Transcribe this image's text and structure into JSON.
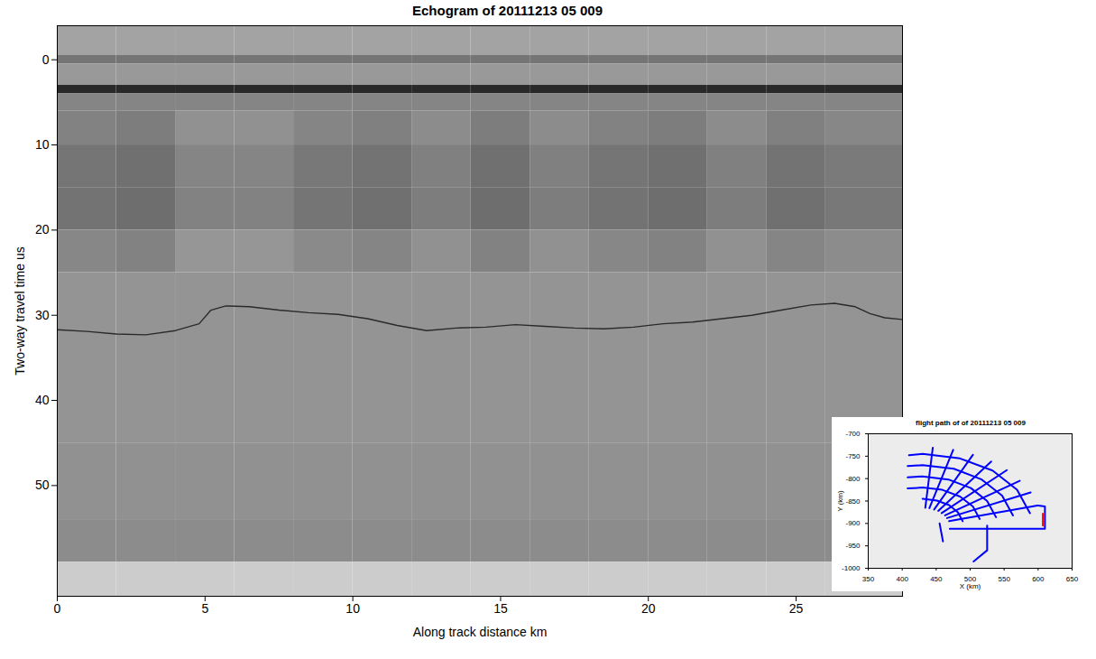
{
  "chart_data": [
    {
      "type": "heatmap",
      "title": "Echogram of 20111213 05 009",
      "x_label": "Along track distance km",
      "y_label": "Two-way travel time us",
      "xlim": [
        0,
        28.6
      ],
      "ylim": [
        63,
        -4
      ],
      "xticks": [
        0,
        5,
        10,
        15,
        20,
        25
      ],
      "yticks": [
        0,
        10,
        20,
        30,
        40,
        50
      ],
      "grid": false,
      "clim": [
        0,
        1
      ],
      "x_edges": [
        0,
        2,
        4,
        6,
        8,
        10,
        12,
        14,
        16,
        18,
        20,
        22,
        24,
        26,
        28.6
      ],
      "y_edges": [
        -4,
        -0.5,
        0.5,
        3,
        4,
        6,
        10,
        15,
        20,
        25,
        45,
        54,
        59,
        63
      ],
      "cells": [
        [
          0.64,
          0.64,
          0.64,
          0.64,
          0.64,
          0.64,
          0.64,
          0.64,
          0.64,
          0.64,
          0.64,
          0.64,
          0.64,
          0.64
        ],
        [
          0.46,
          0.46,
          0.46,
          0.46,
          0.46,
          0.46,
          0.46,
          0.46,
          0.46,
          0.46,
          0.46,
          0.46,
          0.46,
          0.46
        ],
        [
          0.6,
          0.6,
          0.6,
          0.6,
          0.6,
          0.6,
          0.6,
          0.6,
          0.6,
          0.6,
          0.6,
          0.6,
          0.6,
          0.6
        ],
        [
          0.16,
          0.16,
          0.16,
          0.16,
          0.16,
          0.16,
          0.16,
          0.16,
          0.16,
          0.16,
          0.16,
          0.16,
          0.16,
          0.16
        ],
        [
          0.52,
          0.52,
          0.52,
          0.52,
          0.52,
          0.52,
          0.52,
          0.52,
          0.52,
          0.52,
          0.52,
          0.52,
          0.52,
          0.52
        ],
        [
          0.51,
          0.49,
          0.57,
          0.57,
          0.52,
          0.5,
          0.55,
          0.49,
          0.55,
          0.51,
          0.49,
          0.55,
          0.5,
          0.53
        ],
        [
          0.46,
          0.44,
          0.52,
          0.52,
          0.47,
          0.45,
          0.5,
          0.44,
          0.5,
          0.46,
          0.44,
          0.5,
          0.45,
          0.48
        ],
        [
          0.45,
          0.43,
          0.51,
          0.51,
          0.46,
          0.44,
          0.49,
          0.43,
          0.49,
          0.45,
          0.43,
          0.49,
          0.44,
          0.47
        ],
        [
          0.53,
          0.51,
          0.59,
          0.59,
          0.54,
          0.52,
          0.57,
          0.51,
          0.57,
          0.53,
          0.51,
          0.57,
          0.52,
          0.55
        ],
        [
          0.58,
          0.58,
          0.58,
          0.58,
          0.58,
          0.58,
          0.58,
          0.58,
          0.58,
          0.58,
          0.58,
          0.58,
          0.58,
          0.58
        ],
        [
          0.57,
          0.57,
          0.57,
          0.57,
          0.57,
          0.57,
          0.57,
          0.57,
          0.57,
          0.57,
          0.57,
          0.57,
          0.57,
          0.57
        ],
        [
          0.55,
          0.55,
          0.55,
          0.55,
          0.55,
          0.55,
          0.55,
          0.55,
          0.55,
          0.55,
          0.55,
          0.55,
          0.55,
          0.55
        ],
        [
          0.8,
          0.8,
          0.8,
          0.8,
          0.8,
          0.8,
          0.8,
          0.8,
          0.8,
          0.8,
          0.8,
          0.8,
          0.8,
          0.8
        ]
      ],
      "line": {
        "color": "#2a2a2a",
        "x": [
          0,
          1,
          2,
          3,
          4,
          4.8,
          5.2,
          5.7,
          6.5,
          7.5,
          8.5,
          9.5,
          10.5,
          11.5,
          12.5,
          13.5,
          14.5,
          15.5,
          16.5,
          17.5,
          18.5,
          19.5,
          20.5,
          21.5,
          22.5,
          23.5,
          24.5,
          25.5,
          26.3,
          27.0,
          27.5,
          28.0,
          28.6
        ],
        "y": [
          31.7,
          31.9,
          32.2,
          32.3,
          31.8,
          31.0,
          29.4,
          28.9,
          29.0,
          29.4,
          29.7,
          29.9,
          30.4,
          31.2,
          31.8,
          31.5,
          31.4,
          31.1,
          31.3,
          31.5,
          31.6,
          31.4,
          31.0,
          30.8,
          30.4,
          30.0,
          29.4,
          28.8,
          28.6,
          29.0,
          29.8,
          30.3,
          30.5
        ]
      }
    },
    {
      "type": "line",
      "title": "flight path of  of 20111213 05 009",
      "x_label": "X (km)",
      "y_label": "Y (km)",
      "xlim": [
        350,
        650
      ],
      "ylim": [
        -1000,
        -700
      ],
      "xticks": [
        350,
        400,
        450,
        500,
        550,
        600,
        650
      ],
      "yticks": [
        -1000,
        -950,
        -900,
        -850,
        -800,
        -750,
        -700
      ],
      "grid": false,
      "lines": [
        {
          "color": "#0000ff",
          "x": [
            469,
            599
          ],
          "y": [
            -895,
            -860
          ]
        },
        {
          "color": "#0000ff",
          "x": [
            466,
            589
          ],
          "y": [
            -888,
            -831
          ]
        },
        {
          "color": "#0000ff",
          "x": [
            463,
            573
          ],
          "y": [
            -882,
            -805
          ]
        },
        {
          "color": "#0000ff",
          "x": [
            458,
            554
          ],
          "y": [
            -877,
            -781
          ]
        },
        {
          "color": "#0000ff",
          "x": [
            453,
            531
          ],
          "y": [
            -872,
            -762
          ]
        },
        {
          "color": "#0000ff",
          "x": [
            447,
            504
          ],
          "y": [
            -869,
            -747
          ]
        },
        {
          "color": "#0000ff",
          "x": [
            440,
            475
          ],
          "y": [
            -866,
            -736
          ]
        },
        {
          "color": "#0000ff",
          "x": [
            434,
            445
          ],
          "y": [
            -865,
            -731
          ]
        },
        {
          "color": "#0000ff",
          "x": [
            489,
            482,
            469,
            451,
            430
          ],
          "y": [
            -895,
            -875,
            -859,
            -849,
            -845
          ]
        },
        {
          "color": "#0000ff",
          "x": [
            514,
            504,
            485,
            459,
            430,
            408
          ],
          "y": [
            -890,
            -862,
            -840,
            -825,
            -820,
            -822
          ]
        },
        {
          "color": "#0000ff",
          "x": [
            538,
            525,
            501,
            468,
            430,
            408
          ],
          "y": [
            -886,
            -850,
            -821,
            -802,
            -795,
            -797
          ]
        },
        {
          "color": "#0000ff",
          "x": [
            563,
            547,
            517,
            476,
            430,
            408
          ],
          "y": [
            -882,
            -838,
            -802,
            -778,
            -770,
            -772
          ]
        },
        {
          "color": "#0000ff",
          "x": [
            588,
            569,
            533,
            485,
            430,
            410
          ],
          "y": [
            -877,
            -825,
            -782,
            -755,
            -745,
            -748
          ]
        },
        {
          "color": "#0000ff",
          "x": [
            600,
            610,
            610,
            470
          ],
          "y": [
            -860,
            -862,
            -912,
            -912
          ]
        },
        {
          "color": "#0000ff",
          "x": [
            525,
            525,
            505
          ],
          "y": [
            -905,
            -960,
            -985
          ]
        },
        {
          "color": "#0000ff",
          "x": [
            455,
            460
          ],
          "y": [
            -900,
            -940
          ]
        },
        {
          "color": "#ff0000",
          "x": [
            607,
            607
          ],
          "y": [
            -878,
            -905
          ]
        }
      ]
    }
  ]
}
